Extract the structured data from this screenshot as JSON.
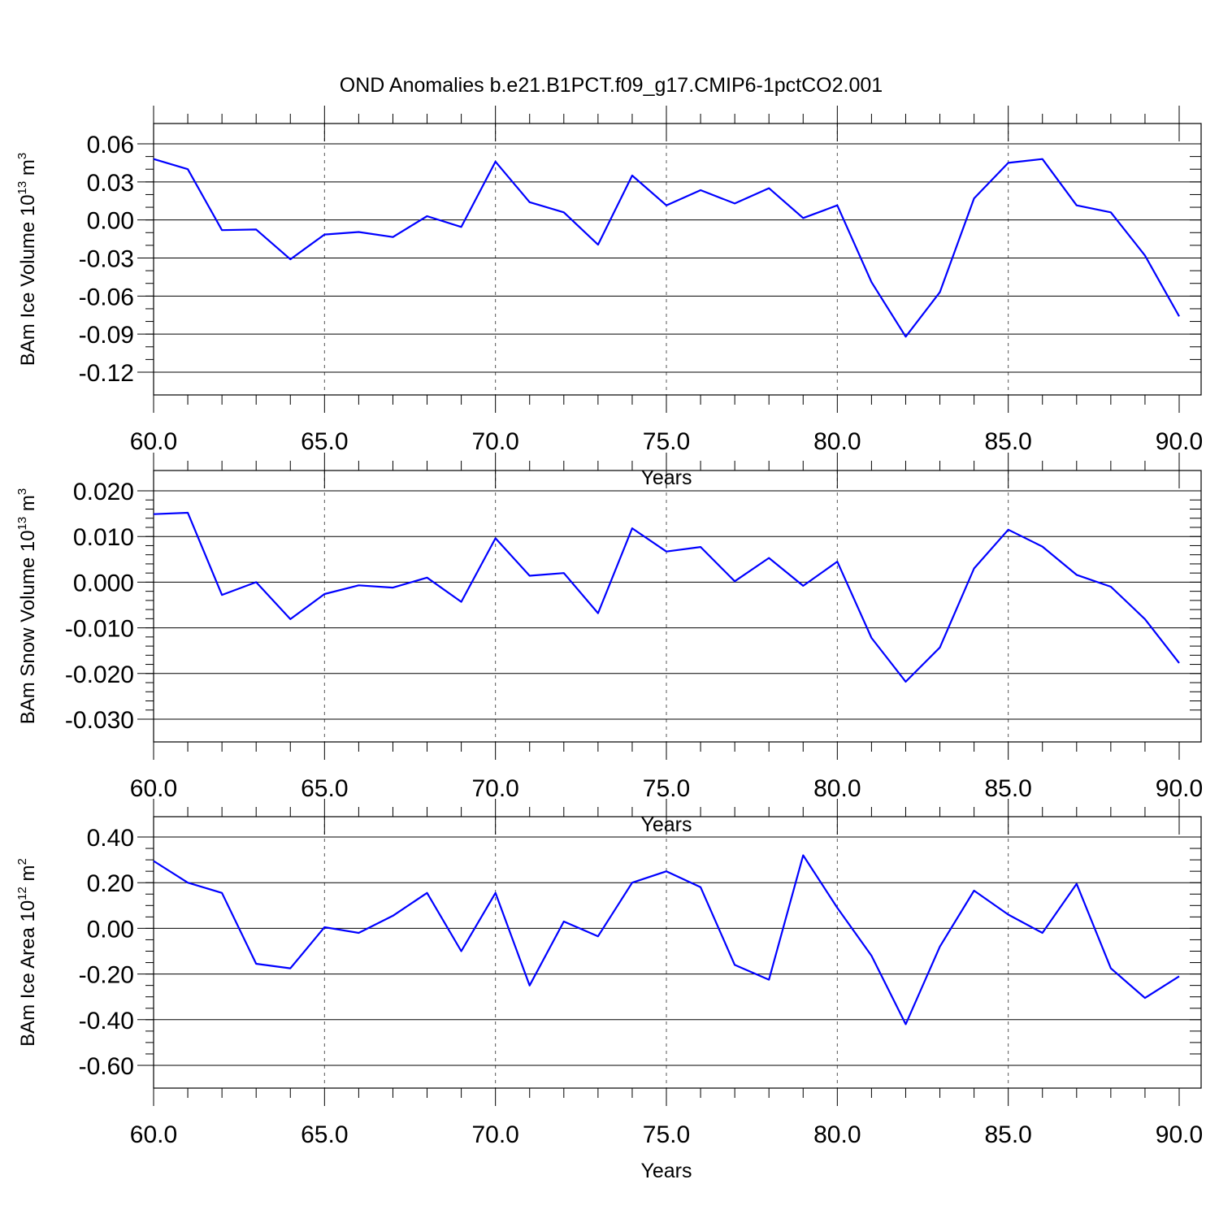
{
  "title": "OND Anomalies b.e21.B1PCT.f09_g17.CMIP6-1pctCO2.001",
  "colors": {
    "series": "#0000ff",
    "grid": "#555555"
  },
  "chart_data": [
    {
      "type": "line",
      "xlabel": "Years",
      "ylabel": {
        "text": "BAm Ice Volume 10",
        "sup": "13",
        "unit": " m",
        "unit_sup": "3"
      },
      "xlim": [
        60,
        90
      ],
      "ylim": [
        -0.12,
        0.06
      ],
      "x_ticks": [
        60,
        65,
        70,
        75,
        80,
        85,
        90
      ],
      "x_tick_labels": [
        "60.0",
        "65.0",
        "70.0",
        "75.0",
        "80.0",
        "85.0",
        "90.0"
      ],
      "y_ticks": [
        -0.12,
        -0.09,
        -0.06,
        -0.03,
        0.0,
        0.03,
        0.06
      ],
      "y_tick_labels": [
        "-0.12",
        "-0.09",
        "-0.06",
        "-0.03",
        "0.00",
        "0.03",
        "0.06"
      ],
      "x_minor_step": 1,
      "y_minor_step": 0.01,
      "vertical_grid": "dashed at major x ticks",
      "x": [
        60,
        61,
        62,
        63,
        64,
        65,
        66,
        67,
        68,
        69,
        70,
        71,
        72,
        73,
        74,
        75,
        76,
        77,
        78,
        79,
        80,
        81,
        82,
        83,
        84,
        85,
        86,
        87,
        88,
        89,
        90
      ],
      "values": [
        0.048,
        0.04,
        -0.008,
        -0.0075,
        -0.031,
        -0.0115,
        -0.0095,
        -0.0135,
        0.003,
        -0.0055,
        0.046,
        0.014,
        0.006,
        -0.0195,
        0.035,
        0.0115,
        0.0235,
        0.013,
        0.025,
        0.0015,
        0.0115,
        -0.049,
        -0.092,
        -0.057,
        0.017,
        0.045,
        0.048,
        0.0115,
        0.006,
        -0.028,
        -0.076
      ]
    },
    {
      "type": "line",
      "xlabel": "Years",
      "ylabel": {
        "text": "BAm Snow Volume 10",
        "sup": "13",
        "unit": " m",
        "unit_sup": "3"
      },
      "xlim": [
        60,
        90
      ],
      "ylim": [
        -0.03,
        0.02
      ],
      "x_ticks": [
        60,
        65,
        70,
        75,
        80,
        85,
        90
      ],
      "x_tick_labels": [
        "60.0",
        "65.0",
        "70.0",
        "75.0",
        "80.0",
        "85.0",
        "90.0"
      ],
      "y_ticks": [
        -0.03,
        -0.02,
        -0.01,
        0.0,
        0.01,
        0.02
      ],
      "y_tick_labels": [
        "-0.030",
        "-0.020",
        "-0.010",
        "0.000",
        "0.010",
        "0.020"
      ],
      "x_minor_step": 1,
      "y_minor_step": 0.002,
      "vertical_grid": "dashed at major x ticks",
      "x": [
        60,
        61,
        62,
        63,
        64,
        65,
        66,
        67,
        68,
        69,
        70,
        71,
        72,
        73,
        74,
        75,
        76,
        77,
        78,
        79,
        80,
        81,
        82,
        83,
        84,
        85,
        86,
        87,
        88,
        89,
        90
      ],
      "values": [
        0.0149,
        0.0152,
        -0.0028,
        0.0,
        -0.0081,
        -0.0026,
        -0.0007,
        -0.0012,
        0.001,
        -0.0043,
        0.0096,
        0.0014,
        0.002,
        -0.0068,
        0.0118,
        0.0067,
        0.0077,
        0.0002,
        0.0053,
        -0.0008,
        0.0045,
        -0.0122,
        -0.0218,
        -0.0143,
        0.003,
        0.0115,
        0.0078,
        0.0016,
        -0.001,
        -0.0081,
        -0.0177
      ]
    },
    {
      "type": "line",
      "xlabel": "Years",
      "ylabel": {
        "text": "BAm Ice Area 10",
        "sup": "12",
        "unit": " m",
        "unit_sup": "2"
      },
      "xlim": [
        60,
        90
      ],
      "ylim": [
        -0.6,
        0.4
      ],
      "x_ticks": [
        60,
        65,
        70,
        75,
        80,
        85,
        90
      ],
      "x_tick_labels": [
        "60.0",
        "65.0",
        "70.0",
        "75.0",
        "80.0",
        "85.0",
        "90.0"
      ],
      "y_ticks": [
        -0.6,
        -0.4,
        -0.2,
        0.0,
        0.2,
        0.4
      ],
      "y_tick_labels": [
        "-0.60",
        "-0.40",
        "-0.20",
        "0.00",
        "0.20",
        "0.40"
      ],
      "x_minor_step": 1,
      "y_minor_step": 0.05,
      "vertical_grid": "dashed at major x ticks",
      "x": [
        60,
        61,
        62,
        63,
        64,
        65,
        66,
        67,
        68,
        69,
        70,
        71,
        72,
        73,
        74,
        75,
        76,
        77,
        78,
        79,
        80,
        81,
        82,
        83,
        84,
        85,
        86,
        87,
        88,
        89,
        90
      ],
      "values": [
        0.295,
        0.2,
        0.155,
        -0.155,
        -0.175,
        0.005,
        -0.02,
        0.055,
        0.155,
        -0.1,
        0.155,
        -0.25,
        0.03,
        -0.035,
        0.2,
        0.25,
        0.18,
        -0.16,
        -0.225,
        0.32,
        0.09,
        -0.12,
        -0.42,
        -0.08,
        0.165,
        0.06,
        -0.02,
        0.195,
        -0.175,
        -0.305,
        -0.21
      ]
    }
  ]
}
